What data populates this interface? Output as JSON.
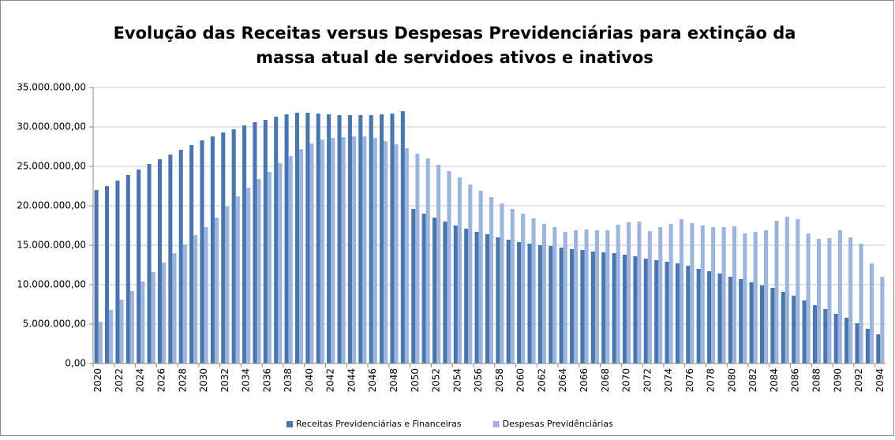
{
  "chart_data": {
    "type": "bar",
    "title": [
      "Evolução das Receitas versus Despesas Previdenciárias para extinção da",
      "massa  atual de servidoes ativos e inativos"
    ],
    "categories": [
      "2020",
      null,
      "2022",
      null,
      "2024",
      null,
      "2026",
      null,
      "2028",
      null,
      "2030",
      null,
      "2032",
      null,
      "2034",
      null,
      "2036",
      null,
      "2038",
      null,
      "2040",
      null,
      "2042",
      null,
      "2044",
      null,
      "2046",
      null,
      "2048",
      null,
      "2050",
      null,
      "2052",
      null,
      "2054",
      null,
      "2056",
      null,
      "2058",
      null,
      "2060",
      null,
      "2062",
      null,
      "2064",
      null,
      "2066",
      null,
      "2068",
      null,
      "2070",
      null,
      "2072",
      null,
      "2074",
      null,
      "2076",
      null,
      "2078",
      null,
      "2080",
      null,
      "2082",
      null,
      "2084",
      null,
      "2086",
      null,
      "2088",
      null,
      "2090",
      null,
      "2092",
      null,
      "2094"
    ],
    "series": [
      {
        "name": "Receitas Previdenciárias e Financeiras",
        "color": "#4a76b0",
        "values": [
          22000000,
          22500000,
          23200000,
          23900000,
          24600000,
          25300000,
          25900000,
          26500000,
          27100000,
          27700000,
          28300000,
          28800000,
          29300000,
          29700000,
          30200000,
          30600000,
          30900000,
          31300000,
          31600000,
          31800000,
          31800000,
          31700000,
          31600000,
          31500000,
          31500000,
          31500000,
          31500000,
          31600000,
          31700000,
          32000000,
          19600000,
          19000000,
          18500000,
          18000000,
          17500000,
          17100000,
          16700000,
          16400000,
          16000000,
          15700000,
          15400000,
          15200000,
          15000000,
          14900000,
          14700000,
          14500000,
          14400000,
          14200000,
          14100000,
          14000000,
          13800000,
          13600000,
          13300000,
          13100000,
          12900000,
          12700000,
          12400000,
          12000000,
          11700000,
          11400000,
          11000000,
          10700000,
          10300000,
          9900000,
          9600000,
          9100000,
          8600000,
          8000000,
          7400000,
          6900000,
          6300000,
          5800000,
          5100000,
          4400000,
          3700000
        ]
      },
      {
        "name": "Despesas Previdênciárias",
        "color": "#9db4dc",
        "values": [
          5300000,
          6800000,
          8100000,
          9200000,
          10400000,
          11600000,
          12800000,
          14000000,
          15100000,
          16300000,
          17300000,
          18500000,
          19900000,
          21200000,
          22300000,
          23400000,
          24300000,
          25400000,
          26300000,
          27200000,
          27900000,
          28400000,
          28600000,
          28700000,
          28800000,
          28800000,
          28600000,
          28200000,
          27800000,
          27300000,
          26600000,
          26000000,
          25200000,
          24400000,
          23600000,
          22700000,
          21900000,
          21100000,
          20300000,
          19600000,
          19000000,
          18400000,
          17700000,
          17300000,
          16700000,
          16900000,
          17000000,
          16900000,
          16900000,
          17600000,
          17900000,
          18000000,
          16800000,
          17300000,
          17700000,
          18300000,
          17800000,
          17500000,
          17300000,
          17300000,
          17400000,
          16500000,
          16700000,
          16900000,
          18100000,
          18600000,
          18300000,
          16500000,
          15800000,
          15900000,
          16900000,
          16000000,
          15200000,
          12700000,
          11000000
        ]
      }
    ],
    "ylim": [
      0,
      35000000
    ],
    "yticks": [
      {
        "value": 0,
        "label": "0,00"
      },
      {
        "value": 5000000,
        "label": "5.000.000,00"
      },
      {
        "value": 10000000,
        "label": "10.000.000,00"
      },
      {
        "value": 15000000,
        "label": "15.000.000,00"
      },
      {
        "value": 20000000,
        "label": "20.000.000,00"
      },
      {
        "value": 25000000,
        "label": "25.000.000,00"
      },
      {
        "value": 30000000,
        "label": "30.000.000,00"
      },
      {
        "value": 35000000,
        "label": "35.000.000,00"
      }
    ],
    "grid": true,
    "legend": "bottom"
  }
}
